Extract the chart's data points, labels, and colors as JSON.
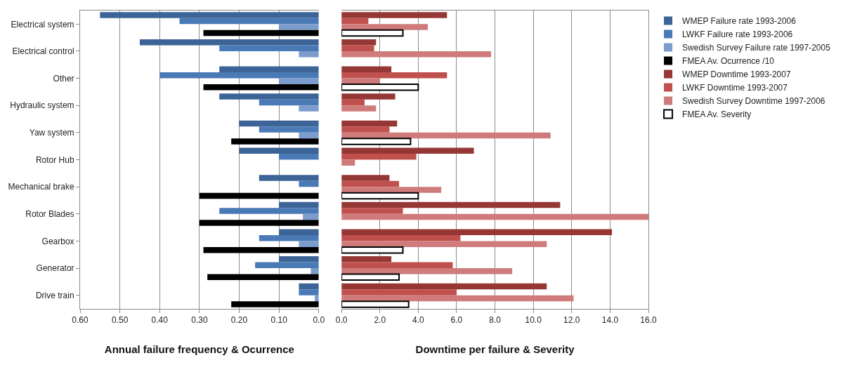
{
  "chart_data": [
    {
      "type": "bar",
      "orientation": "horizontal",
      "xlabel": "Annual failure frequency & Ocurrence",
      "grid": "x",
      "legend": "right",
      "categories": [
        "Electrical system",
        "Electrical control",
        "Other",
        "Hydraulic system",
        "Yaw system",
        "Rotor Hub",
        "Mechanical brake",
        "Rotor Blades",
        "Gearbox",
        "Generator",
        "Drive train"
      ],
      "xlim": [
        0.6,
        0
      ],
      "xticks": [
        {
          "value": 0.6,
          "label": "0.60"
        },
        {
          "value": 0.5,
          "label": "0.50"
        },
        {
          "value": 0.4,
          "label": "0.40"
        },
        {
          "value": 0.3,
          "label": "0.30"
        },
        {
          "value": 0.2,
          "label": "0.20"
        },
        {
          "value": 0.1,
          "label": "0.10"
        },
        {
          "value": 0,
          "label": "0.0"
        }
      ],
      "series": [
        {
          "name": "WMEP Failure rate 1993-2006",
          "color": "#3c6496",
          "values": [
            0.55,
            0.45,
            0.25,
            0.25,
            0.2,
            0.2,
            0.15,
            0.1,
            0.1,
            0.1,
            0.05
          ]
        },
        {
          "name": "LWKF Failure rate 1993-2006",
          "color": "#4a7ab5",
          "values": [
            0.35,
            0.25,
            0.4,
            0.15,
            0.15,
            0.1,
            0.05,
            0.25,
            0.15,
            0.16,
            0.05
          ]
        },
        {
          "name": "Swedish Survey Failure rate 1997-2005",
          "color": "#7b9ccd",
          "values": [
            0.1,
            0.05,
            0.1,
            0.05,
            0.05,
            null,
            null,
            0.04,
            0.05,
            0.02,
            0.01
          ]
        },
        {
          "name": "FMEA Av. Ocurrence /10",
          "color": "#000000",
          "values": [
            0.29,
            null,
            0.29,
            null,
            0.22,
            null,
            0.3,
            0.3,
            0.29,
            0.28,
            0.22
          ]
        }
      ]
    },
    {
      "type": "bar",
      "orientation": "horizontal",
      "xlabel": "Downtime per failure & Severity",
      "grid": "x",
      "legend": "right",
      "tick_labels": "x",
      "categories": [
        null,
        null,
        null,
        null,
        null,
        null,
        null,
        null,
        null,
        null,
        null
      ],
      "xlim": [
        0,
        16
      ],
      "xticks": [
        {
          "value": 0,
          "label": "0.0"
        },
        {
          "value": 2,
          "label": "2.0"
        },
        {
          "value": 4,
          "label": "4.0"
        },
        {
          "value": 6,
          "label": "6.0"
        },
        {
          "value": 8,
          "label": "8.0"
        },
        {
          "value": 10,
          "label": "10.0"
        },
        {
          "value": 12,
          "label": "12.0"
        },
        {
          "value": 14,
          "label": "14.0"
        },
        {
          "value": 16,
          "label": "16.0"
        }
      ],
      "series": [
        {
          "name": "WMEP Downtime 1993-2007",
          "color": "#953735",
          "values": [
            5.5,
            1.8,
            2.6,
            2.8,
            2.9,
            6.9,
            2.5,
            11.4,
            14.1,
            2.6,
            10.7
          ]
        },
        {
          "name": "LWKF Downtime 1993-2007",
          "color": "#c0504d",
          "values": [
            1.4,
            1.7,
            5.5,
            1.2,
            2.5,
            3.9,
            3.0,
            3.2,
            6.2,
            5.8,
            6.0
          ]
        },
        {
          "name": "Swedish Survey Downtime 1997-2006",
          "color": "#d07b7b",
          "values": [
            4.5,
            7.8,
            2.0,
            1.8,
            10.9,
            0.7,
            5.2,
            16.0,
            10.7,
            8.9,
            12.1
          ]
        },
        {
          "name": "FMEA Av. Severity",
          "color": "#ffffff",
          "values": [
            3.2,
            null,
            4.0,
            null,
            3.6,
            null,
            4.0,
            null,
            3.2,
            3.0,
            3.5
          ]
        }
      ]
    }
  ]
}
